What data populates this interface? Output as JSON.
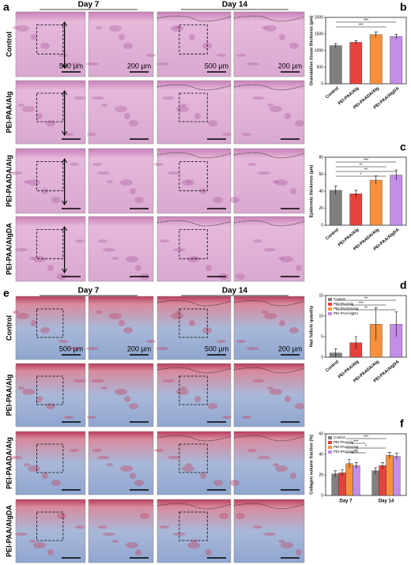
{
  "figure": {
    "panel_labels": [
      "a",
      "b",
      "c",
      "d",
      "e",
      "f"
    ],
    "day_labels": [
      "Day 7",
      "Day 14"
    ],
    "groups": [
      "Control",
      "PEI-PAA/Alg",
      "PEI-PAADA/Alg",
      "PEI-PAA/AlgDA"
    ],
    "scale_bars": [
      "500 µm",
      "200 µm"
    ]
  },
  "chart_data": [
    {
      "type": "bar",
      "ylabel": "Granulation tissue thickness (µm)",
      "categories": [
        "Control",
        "PEI-PAA/Alg",
        "PEI-PAADA/Alg",
        "PEI-PAA/AlgDA"
      ],
      "values": [
        1150,
        1250,
        1480,
        1420
      ],
      "errors": [
        60,
        50,
        80,
        70
      ],
      "colors": [
        "#808080",
        "#e8413b",
        "#f7913d",
        "#c38de8"
      ],
      "ylim": [
        0,
        2000
      ],
      "yticks": [
        0,
        500,
        1000,
        1500,
        2000
      ],
      "annotations": [
        "***",
        "***"
      ]
    },
    {
      "type": "bar",
      "ylabel": "Epidermis thickness (µm)",
      "categories": [
        "Control",
        "PEI-PAA/Alg",
        "PEI-PAADA/Alg",
        "PEI-PAA/AlgDA"
      ],
      "values": [
        41,
        37,
        53,
        59
      ],
      "errors": [
        5,
        4,
        5,
        6
      ],
      "colors": [
        "#808080",
        "#e8413b",
        "#f7913d",
        "#c38de8"
      ],
      "ylim": [
        0,
        80
      ],
      "yticks": [
        0,
        20,
        40,
        60,
        80
      ],
      "annotations": [
        "***",
        "**",
        "**",
        "*"
      ]
    },
    {
      "type": "bar",
      "ylabel": "Hair follicle quantity",
      "categories": [
        "Control",
        "PEI-PAA/Alg",
        "PEI-PAADA/Alg",
        "PEI-PAA/AlgDA"
      ],
      "values": [
        1,
        3.5,
        8,
        8
      ],
      "errors": [
        1,
        1.5,
        4,
        3
      ],
      "colors": [
        "#808080",
        "#e8413b",
        "#f7913d",
        "#c38de8"
      ],
      "ylim": [
        0,
        15
      ],
      "yticks": [
        0,
        5,
        10,
        15
      ],
      "legend": "top-left",
      "annotations": [
        "**",
        "***",
        "**"
      ]
    },
    {
      "type": "bar",
      "ylabel": "Collagen volume fraction (%)",
      "categories": [
        "Day 7",
        "Day 14"
      ],
      "series": [
        {
          "name": "Control",
          "color": "#808080",
          "values": [
            21,
            24
          ],
          "errors": [
            3,
            3
          ]
        },
        {
          "name": "PEI-PAA/Alg",
          "color": "#e8413b",
          "values": [
            22,
            29
          ],
          "errors": [
            3,
            3
          ]
        },
        {
          "name": "PEI-PAADA/Alg",
          "color": "#f7913d",
          "values": [
            31,
            39
          ],
          "errors": [
            4,
            3
          ]
        },
        {
          "name": "PEI-PAA/AlgDA",
          "color": "#c38de8",
          "values": [
            29,
            38
          ],
          "errors": [
            3,
            3
          ]
        }
      ],
      "ylim": [
        0,
        60
      ],
      "yticks": [
        0,
        20,
        40,
        60
      ],
      "legend": "top-left",
      "annotations": [
        "***",
        "***",
        "*",
        "**"
      ]
    }
  ]
}
